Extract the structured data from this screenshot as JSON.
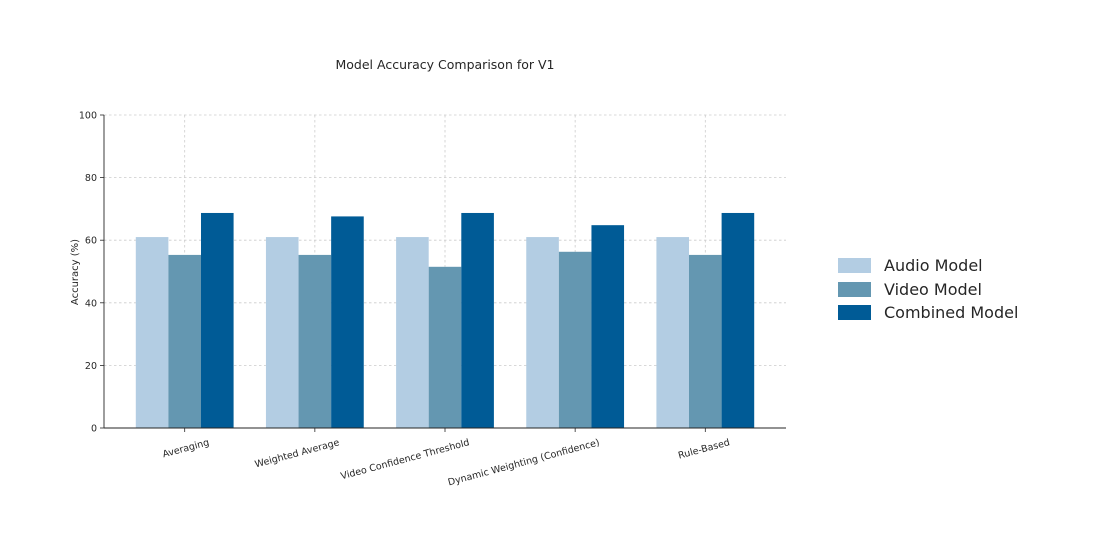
{
  "chart_data": {
    "type": "bar",
    "title": "Model Accuracy Comparison for V1",
    "xlabel": "",
    "ylabel": "Accuracy (%)",
    "categories": [
      "Averaging",
      "Weighted Average",
      "Video Confidence Threshold",
      "Dynamic Weighting (Confidence)",
      "Rule-Based"
    ],
    "series": [
      {
        "name": "Audio Model",
        "color": "#b3cde3",
        "values": [
          61,
          61,
          61,
          61,
          61
        ]
      },
      {
        "name": "Video Model",
        "color": "#6497b1",
        "values": [
          55.3,
          55.3,
          51.5,
          56.3,
          55.3
        ]
      },
      {
        "name": "Combined Model",
        "color": "#005b96",
        "values": [
          68.7,
          67.6,
          68.7,
          64.8,
          68.7
        ]
      }
    ],
    "ylim": [
      0,
      100
    ],
    "yticks": [
      0,
      20,
      40,
      60,
      80,
      100
    ],
    "grid": true,
    "legend_position": "right"
  }
}
